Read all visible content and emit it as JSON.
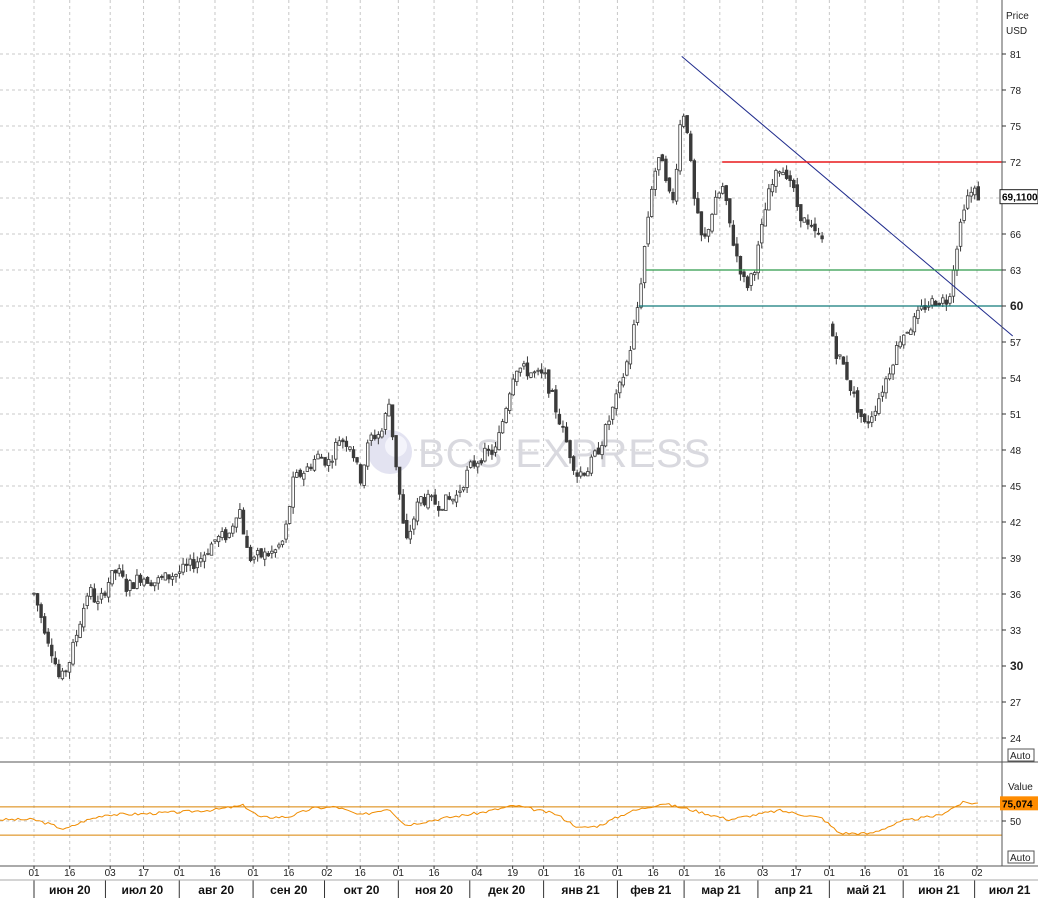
{
  "chart_data": [
    {
      "type": "candlestick",
      "panel": "price",
      "axis_title": "Price",
      "axis_unit": "USD",
      "y_ticks": [
        24,
        27,
        30,
        33,
        36,
        39,
        42,
        45,
        48,
        51,
        54,
        57,
        60,
        63,
        66,
        69,
        72,
        75,
        78,
        81
      ],
      "y_ticks_bold": [
        30,
        60
      ],
      "ylim": [
        22.5,
        82.5
      ],
      "last_value_label": "69,1100",
      "last_value": 69.11,
      "auto_label": "Auto",
      "grid": true,
      "price_path": [
        [
          "2020-06-01",
          36.0
        ],
        [
          "2020-06-05",
          33.5
        ],
        [
          "2020-06-09",
          31.0
        ],
        [
          "2020-06-12",
          28.6
        ],
        [
          "2020-06-16",
          30.5
        ],
        [
          "2020-06-20",
          33.5
        ],
        [
          "2020-06-24",
          36.5
        ],
        [
          "2020-06-28",
          35.0
        ],
        [
          "2020-07-02",
          37.0
        ],
        [
          "2020-07-06",
          38.0
        ],
        [
          "2020-07-10",
          36.5
        ],
        [
          "2020-07-16",
          37.5
        ],
        [
          "2020-07-22",
          37.0
        ],
        [
          "2020-07-28",
          37.5
        ],
        [
          "2020-08-03",
          38.0
        ],
        [
          "2020-08-10",
          39.0
        ],
        [
          "2020-08-16",
          40.5
        ],
        [
          "2020-08-22",
          41.0
        ],
        [
          "2020-08-26",
          43.5
        ],
        [
          "2020-08-30",
          39.0
        ],
        [
          "2020-09-05",
          39.2
        ],
        [
          "2020-09-10",
          39.5
        ],
        [
          "2020-09-14",
          40.5
        ],
        [
          "2020-09-18",
          45.5
        ],
        [
          "2020-09-24",
          46.5
        ],
        [
          "2020-09-28",
          47.5
        ],
        [
          "2020-10-03",
          47.0
        ],
        [
          "2020-10-07",
          49.0
        ],
        [
          "2020-10-12",
          48.5
        ],
        [
          "2020-10-16",
          45.5
        ],
        [
          "2020-10-20",
          49.0
        ],
        [
          "2020-10-25",
          49.5
        ],
        [
          "2020-10-28",
          52.0
        ],
        [
          "2020-11-02",
          43.5
        ],
        [
          "2020-11-04",
          40.0
        ],
        [
          "2020-11-10",
          44.0
        ],
        [
          "2020-11-18",
          43.5
        ],
        [
          "2020-11-25",
          44.0
        ],
        [
          "2020-12-01",
          46.5
        ],
        [
          "2020-12-06",
          47.5
        ],
        [
          "2020-12-12",
          48.0
        ],
        [
          "2020-12-16",
          51.5
        ],
        [
          "2020-12-20",
          55.0
        ],
        [
          "2020-12-26",
          54.5
        ],
        [
          "2021-01-02",
          54.0
        ],
        [
          "2021-01-06",
          51.5
        ],
        [
          "2021-01-10",
          49.0
        ],
        [
          "2021-01-15",
          46.0
        ],
        [
          "2021-01-20",
          46.5
        ],
        [
          "2021-01-25",
          48.5
        ],
        [
          "2021-02-01",
          52.5
        ],
        [
          "2021-02-06",
          56.0
        ],
        [
          "2021-02-10",
          60.5
        ],
        [
          "2021-02-13",
          66.0
        ],
        [
          "2021-02-16",
          71.0
        ],
        [
          "2021-02-20",
          72.5
        ],
        [
          "2021-02-24",
          68.0
        ],
        [
          "2021-02-28",
          76.5
        ],
        [
          "2021-03-02",
          75.5
        ],
        [
          "2021-03-05",
          69.0
        ],
        [
          "2021-03-09",
          65.0
        ],
        [
          "2021-03-13",
          68.0
        ],
        [
          "2021-03-17",
          70.0
        ],
        [
          "2021-03-22",
          65.0
        ],
        [
          "2021-03-27",
          61.5
        ],
        [
          "2021-03-31",
          63.5
        ],
        [
          "2021-04-05",
          69.0
        ],
        [
          "2021-04-10",
          71.5
        ],
        [
          "2021-04-14",
          71.0
        ],
        [
          "2021-04-18",
          68.0
        ],
        [
          "2021-04-22",
          66.5
        ],
        [
          "2021-04-28",
          65.5
        ],
        [
          "2021-05-03",
          56.5
        ],
        [
          "2021-05-07",
          55.0
        ],
        [
          "2021-05-12",
          52.0
        ],
        [
          "2021-05-16",
          50.0
        ],
        [
          "2021-05-20",
          51.5
        ],
        [
          "2021-05-25",
          54.0
        ],
        [
          "2021-05-31",
          57.5
        ],
        [
          "2021-06-05",
          58.5
        ],
        [
          "2021-06-10",
          60.0
        ],
        [
          "2021-06-15",
          60.5
        ],
        [
          "2021-06-20",
          60.5
        ],
        [
          "2021-06-23",
          64.5
        ],
        [
          "2021-06-27",
          69.0
        ],
        [
          "2021-07-01",
          69.5
        ],
        [
          "2021-07-03",
          69.1
        ]
      ],
      "lines": [
        {
          "kind": "trendline",
          "color": "#1f2b8c",
          "points": [
            [
              "2021-02-28",
              80.8
            ],
            [
              "2021-07-17",
              57.5
            ]
          ]
        },
        {
          "kind": "horizontal",
          "color": "#e8191b",
          "y": 72.0,
          "from": "2021-03-17",
          "to": "2021-07-31"
        },
        {
          "kind": "horizontal",
          "color": "#2e9a4a",
          "y": 63.0,
          "from": "2021-02-13",
          "to": "2021-07-31"
        },
        {
          "kind": "horizontal",
          "color": "#117a7a",
          "y": 60.0,
          "from": "2021-02-10",
          "to": "2021-07-31"
        }
      ]
    },
    {
      "type": "line",
      "panel": "indicator",
      "axis_title": "Value",
      "y_ticks": [
        50
      ],
      "ylim": [
        35,
        85
      ],
      "bands": [
        70,
        30
      ],
      "last_value_label": "75,074",
      "last_value": 75.074,
      "auto_label": "Auto",
      "series_color": "#f08c00",
      "band_color": "#d98200",
      "value_path": [
        [
          "2020-06-01",
          52
        ],
        [
          "2020-06-08",
          45
        ],
        [
          "2020-06-14",
          38
        ],
        [
          "2020-06-22",
          50
        ],
        [
          "2020-07-01",
          59
        ],
        [
          "2020-07-16",
          60
        ],
        [
          "2020-08-03",
          63
        ],
        [
          "2020-08-16",
          66
        ],
        [
          "2020-08-28",
          72
        ],
        [
          "2020-09-04",
          55
        ],
        [
          "2020-09-16",
          56
        ],
        [
          "2020-09-26",
          68
        ],
        [
          "2020-10-06",
          70
        ],
        [
          "2020-10-16",
          58
        ],
        [
          "2020-10-28",
          68
        ],
        [
          "2020-11-04",
          44
        ],
        [
          "2020-11-20",
          54
        ],
        [
          "2020-12-06",
          62
        ],
        [
          "2020-12-20",
          72
        ],
        [
          "2021-01-06",
          60
        ],
        [
          "2021-01-16",
          40
        ],
        [
          "2021-01-24",
          43
        ],
        [
          "2021-02-06",
          63
        ],
        [
          "2021-02-20",
          75
        ],
        [
          "2021-03-05",
          65
        ],
        [
          "2021-03-20",
          52
        ],
        [
          "2021-04-10",
          65
        ],
        [
          "2021-04-28",
          54
        ],
        [
          "2021-05-05",
          33
        ],
        [
          "2021-05-18",
          32
        ],
        [
          "2021-06-01",
          50
        ],
        [
          "2021-06-16",
          58
        ],
        [
          "2021-06-26",
          76
        ],
        [
          "2021-07-03",
          75
        ]
      ]
    }
  ],
  "x_axis": {
    "day_ticks": [
      {
        "date": "2020-06-01",
        "label": "01"
      },
      {
        "date": "2020-06-16",
        "label": "16"
      },
      {
        "date": "2020-07-03",
        "label": "03"
      },
      {
        "date": "2020-07-17",
        "label": "17"
      },
      {
        "date": "2020-08-01",
        "label": "01"
      },
      {
        "date": "2020-08-16",
        "label": "16"
      },
      {
        "date": "2020-09-01",
        "label": "01"
      },
      {
        "date": "2020-09-16",
        "label": "16"
      },
      {
        "date": "2020-10-02",
        "label": "02"
      },
      {
        "date": "2020-10-16",
        "label": "16"
      },
      {
        "date": "2020-11-01",
        "label": "01"
      },
      {
        "date": "2020-11-16",
        "label": "16"
      },
      {
        "date": "2020-12-04",
        "label": "04"
      },
      {
        "date": "2020-12-19",
        "label": "19"
      },
      {
        "date": "2021-01-01",
        "label": "01"
      },
      {
        "date": "2021-01-16",
        "label": "16"
      },
      {
        "date": "2021-02-01",
        "label": "01"
      },
      {
        "date": "2021-02-16",
        "label": "16"
      },
      {
        "date": "2021-03-01",
        "label": "01"
      },
      {
        "date": "2021-03-16",
        "label": "16"
      },
      {
        "date": "2021-04-03",
        "label": "03"
      },
      {
        "date": "2021-04-17",
        "label": "17"
      },
      {
        "date": "2021-05-01",
        "label": "01"
      },
      {
        "date": "2021-05-16",
        "label": "16"
      },
      {
        "date": "2021-06-01",
        "label": "01"
      },
      {
        "date": "2021-06-16",
        "label": "16"
      },
      {
        "date": "2021-07-02",
        "label": "02"
      }
    ],
    "month_labels": [
      {
        "start": "2020-06-01",
        "label": "июн 20"
      },
      {
        "start": "2020-07-01",
        "label": "июл 20"
      },
      {
        "start": "2020-08-01",
        "label": "авг 20"
      },
      {
        "start": "2020-09-01",
        "label": "сен 20"
      },
      {
        "start": "2020-10-01",
        "label": "окт 20"
      },
      {
        "start": "2020-11-01",
        "label": "ноя 20"
      },
      {
        "start": "2020-12-01",
        "label": "дек 20"
      },
      {
        "start": "2021-01-01",
        "label": "янв 21"
      },
      {
        "start": "2021-02-01",
        "label": "фев 21"
      },
      {
        "start": "2021-03-01",
        "label": "мар 21"
      },
      {
        "start": "2021-04-01",
        "label": "апр 21"
      },
      {
        "start": "2021-05-01",
        "label": "май 21"
      },
      {
        "start": "2021-06-01",
        "label": "июн 21"
      },
      {
        "start": "2021-07-01",
        "label": "июл 21"
      }
    ]
  },
  "watermark": "BCS EXPRESS",
  "colors": {
    "candle": "#3a3a3a",
    "grid": "#c8c8c8",
    "label_box": "#ff8c00",
    "price_label_bg": "#ffffff"
  }
}
